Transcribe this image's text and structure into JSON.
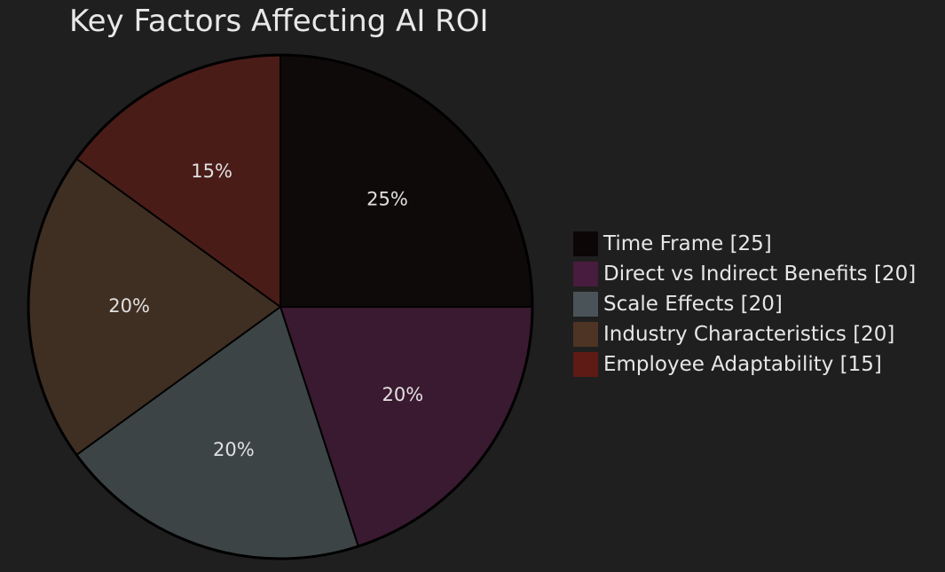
{
  "chart_data": {
    "type": "pie",
    "title": "Key Factors Affecting AI ROI",
    "categories": [
      "Time Frame",
      "Direct vs Indirect Benefits",
      "Scale Effects",
      "Industry Characteristics",
      "Employee Adaptability"
    ],
    "values": [
      25,
      20,
      20,
      20,
      15
    ],
    "percent_labels": [
      "25%",
      "20%",
      "20%",
      "20%",
      "15%"
    ],
    "legend_labels": [
      "Time Frame [25]",
      "Direct vs Indirect Benefits [20]",
      "Scale Effects [20]",
      "Industry Characteristics [20]",
      "Employee Adaptability [15]"
    ],
    "colors": [
      "#0f0a0a",
      "#3a1a30",
      "#3c4446",
      "#3f2e22",
      "#4a1c18"
    ],
    "legend_colors": [
      "#0c0606",
      "#481c3e",
      "#4a5458",
      "#4e3424",
      "#5e1a14"
    ],
    "legend_position": "right",
    "start_angle": "top, clockwise"
  }
}
